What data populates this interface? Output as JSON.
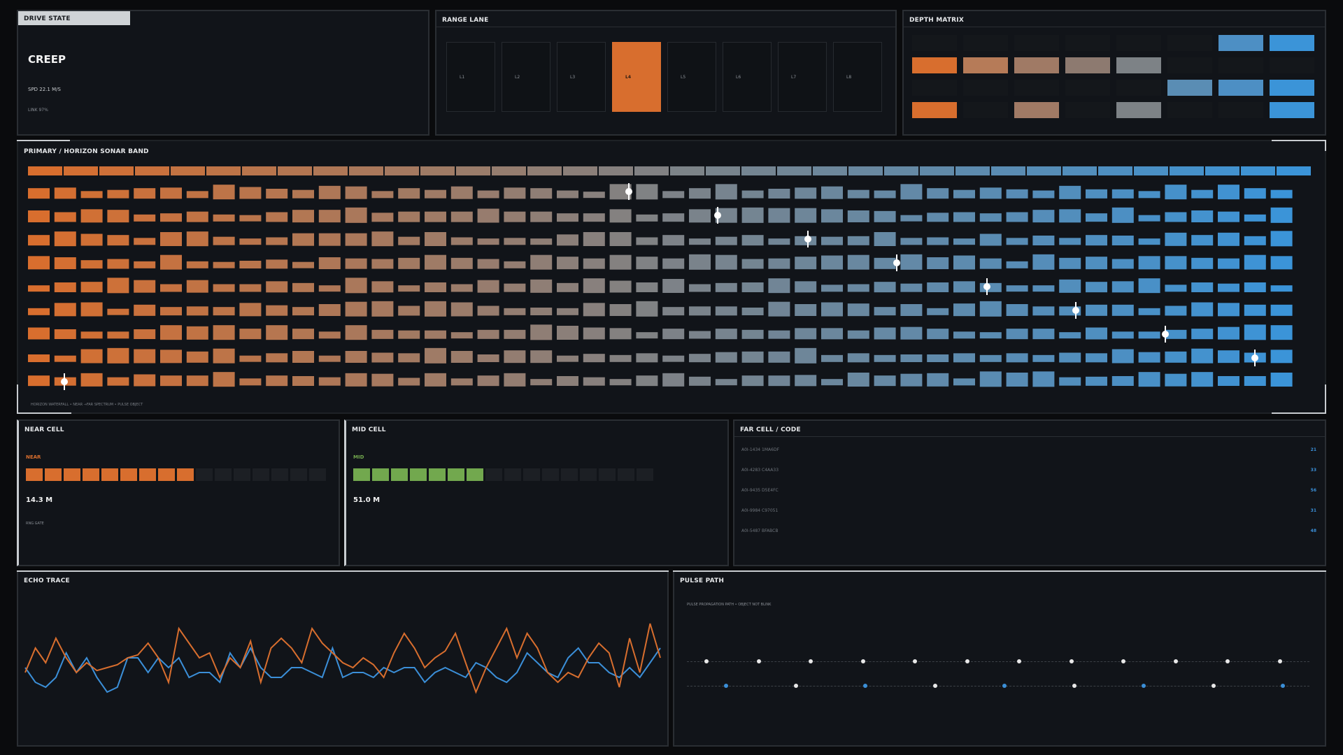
{
  "drive_state": {
    "title": "DRIVE STATE",
    "mode": "CREEP",
    "speed": "SPD 22.1 M/S",
    "link": "LINK 97%"
  },
  "range_lane": {
    "title": "RANGE LANE",
    "lanes": [
      "L1",
      "L2",
      "L3",
      "L4",
      "L5",
      "L6",
      "L7",
      "L8"
    ],
    "active_lane": "L4"
  },
  "depth_matrix": {
    "title": "DEPTH MATRIX",
    "rows": [
      [
        0,
        0,
        0,
        0,
        0,
        0,
        9,
        10
      ],
      [
        1,
        2,
        3,
        4,
        5,
        0,
        0,
        0
      ],
      [
        0,
        0,
        0,
        0,
        0,
        8,
        9,
        10
      ],
      [
        1,
        0,
        3,
        0,
        5,
        0,
        0,
        10
      ]
    ],
    "palette": [
      "#1a1d22",
      "#d86e2e",
      "#b67b58",
      "#a07a65",
      "#8d7a70",
      "#7d8286",
      "#6b8597",
      "#5f87a6",
      "#5a8db4",
      "#4d8fc4",
      "#3b94d8"
    ]
  },
  "primary": {
    "title": "PRIMARY  /  HORIZON SONAR BAND",
    "caption": "HORIZON WATERFALL • NEAR →FAR SPECTRUM • PULSE OBJECT"
  },
  "near_cell": {
    "title": "NEAR CELL",
    "label": "NEAR",
    "value": "14.3 M",
    "sub": "RNG GATE",
    "level": 0.56,
    "color": "#d86e2e"
  },
  "mid_cell": {
    "title": "MID CELL",
    "label": "MID",
    "value": "51.0 M",
    "level": 0.44,
    "color": "#72a84e"
  },
  "far_cell": {
    "title": "FAR CELL  /  CODE",
    "rows": [
      {
        "code": "A0I-1434  1MA6DF",
        "value": "21"
      },
      {
        "code": "A0I-4283  C4AA33",
        "value": "33"
      },
      {
        "code": "A0I-9435  D5E4FC",
        "value": "56"
      },
      {
        "code": "A0I-9984  C97051",
        "value": "31"
      },
      {
        "code": "A0I-5487  BFABCB",
        "value": "48"
      }
    ]
  },
  "echo_trace": {
    "title": "ECHO TRACE",
    "orange_color": "#d86e2e",
    "blue_color": "#3b8fd8",
    "series_orange": [
      40,
      65,
      50,
      75,
      55,
      40,
      50,
      42,
      45,
      48,
      55,
      58,
      70,
      55,
      30,
      85,
      70,
      55,
      60,
      35,
      55,
      45,
      72,
      30,
      65,
      75,
      65,
      50,
      85,
      70,
      60,
      50,
      45,
      55,
      48,
      35,
      60,
      80,
      65,
      45,
      55,
      62,
      80,
      50,
      20,
      45,
      65,
      85,
      55,
      80,
      65,
      40,
      30,
      40,
      35,
      55,
      70,
      60,
      25,
      75,
      40,
      90,
      55
    ],
    "series_blue": [
      45,
      30,
      25,
      35,
      60,
      40,
      55,
      35,
      20,
      25,
      55,
      55,
      40,
      55,
      45,
      55,
      35,
      40,
      40,
      30,
      60,
      45,
      65,
      45,
      35,
      35,
      45,
      45,
      40,
      35,
      65,
      35,
      40,
      40,
      35,
      45,
      40,
      45,
      45,
      30,
      40,
      45,
      40,
      35,
      50,
      45,
      35,
      30,
      40,
      60,
      50,
      40,
      35,
      55,
      65,
      50,
      50,
      40,
      35,
      45,
      35,
      50,
      65
    ]
  },
  "pulse_path": {
    "title": "PULSE PATH",
    "caption": "PULSE PROPAGATION PATH  •  OBJECT NOT BLINK"
  }
}
